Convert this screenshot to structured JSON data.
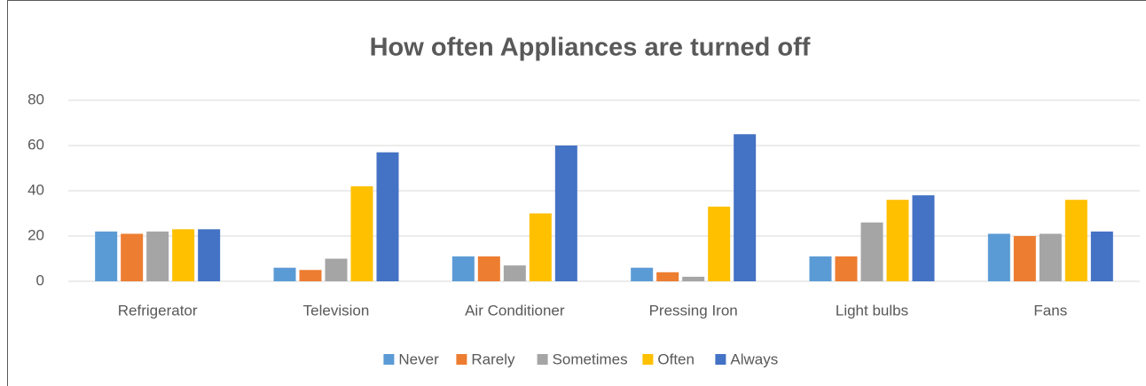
{
  "chart_data": {
    "type": "bar",
    "title": "How often Appliances are turned off",
    "categories": [
      "Refrigerator",
      "Television",
      "Air Conditioner",
      "Pressing Iron",
      "Light bulbs",
      "Fans"
    ],
    "series": [
      {
        "name": "Never",
        "color": "#5b9bd5",
        "values": [
          22,
          6,
          11,
          6,
          11,
          21
        ]
      },
      {
        "name": "Rarely",
        "color": "#ed7d31",
        "values": [
          21,
          5,
          11,
          4,
          11,
          20
        ]
      },
      {
        "name": "Sometimes",
        "color": "#a5a5a5",
        "values": [
          22,
          10,
          7,
          2,
          26,
          21
        ]
      },
      {
        "name": "Often",
        "color": "#ffc000",
        "values": [
          23,
          42,
          30,
          33,
          36,
          36
        ]
      },
      {
        "name": "Always",
        "color": "#4472c4",
        "values": [
          23,
          57,
          60,
          65,
          38,
          22
        ]
      }
    ],
    "ylim": [
      0,
      80
    ],
    "yticks": [
      0,
      20,
      40,
      60,
      80
    ],
    "grid": true,
    "legend": "bottom"
  }
}
